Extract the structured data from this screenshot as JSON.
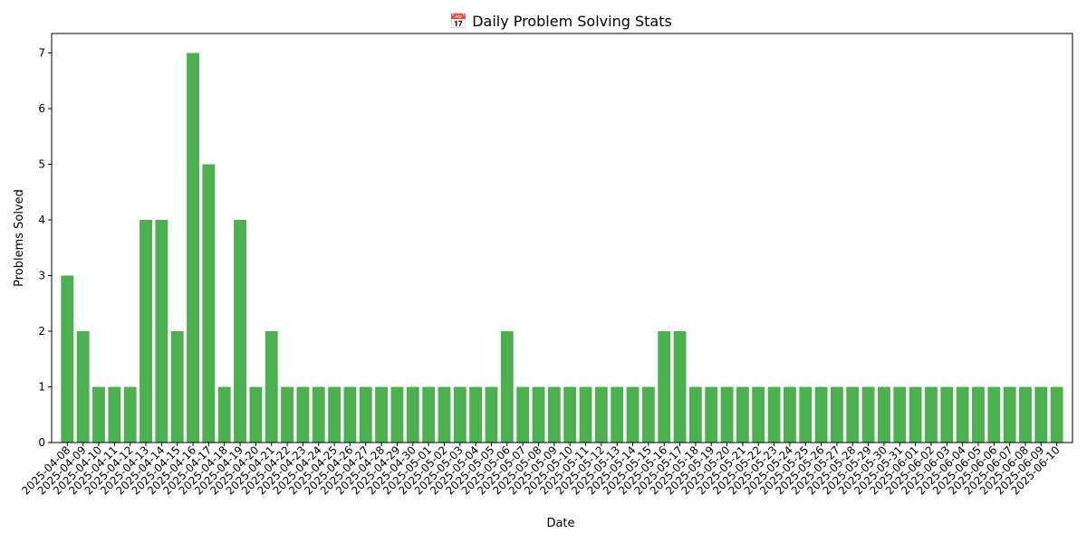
{
  "chart_data": {
    "type": "bar",
    "title": "📅 Daily Problem Solving Stats",
    "xlabel": "Date",
    "ylabel": "Problems Solved",
    "ylim": [
      0,
      7.35
    ],
    "yticks": [
      0,
      1,
      2,
      3,
      4,
      5,
      6,
      7
    ],
    "bar_color": "#4caf50",
    "grid": false,
    "categories": [
      "2025-04-08",
      "2025-04-09",
      "2025-04-10",
      "2025-04-11",
      "2025-04-12",
      "2025-04-13",
      "2025-04-14",
      "2025-04-15",
      "2025-04-16",
      "2025-04-17",
      "2025-04-18",
      "2025-04-19",
      "2025-04-20",
      "2025-04-21",
      "2025-04-22",
      "2025-04-23",
      "2025-04-24",
      "2025-04-25",
      "2025-04-26",
      "2025-04-27",
      "2025-04-28",
      "2025-04-29",
      "2025-04-30",
      "2025-05-01",
      "2025-05-02",
      "2025-05-03",
      "2025-05-04",
      "2025-05-05",
      "2025-05-06",
      "2025-05-07",
      "2025-05-08",
      "2025-05-09",
      "2025-05-10",
      "2025-05-11",
      "2025-05-12",
      "2025-05-13",
      "2025-05-14",
      "2025-05-15",
      "2025-05-16",
      "2025-05-17",
      "2025-05-18",
      "2025-05-19",
      "2025-05-20",
      "2025-05-21",
      "2025-05-22",
      "2025-05-23",
      "2025-05-24",
      "2025-05-25",
      "2025-05-26",
      "2025-05-27",
      "2025-05-28",
      "2025-05-29",
      "2025-05-30",
      "2025-05-31",
      "2025-06-01",
      "2025-06-02",
      "2025-06-03",
      "2025-06-04",
      "2025-06-05",
      "2025-06-06",
      "2025-06-07",
      "2025-06-08",
      "2025-06-09",
      "2025-06-10"
    ],
    "values": [
      3,
      2,
      1,
      1,
      1,
      4,
      4,
      2,
      7,
      5,
      1,
      4,
      1,
      2,
      1,
      1,
      1,
      1,
      1,
      1,
      1,
      1,
      1,
      1,
      1,
      1,
      1,
      1,
      2,
      1,
      1,
      1,
      1,
      1,
      1,
      1,
      1,
      1,
      2,
      2,
      1,
      1,
      1,
      1,
      1,
      1,
      1,
      1,
      1,
      1,
      1,
      1,
      1,
      1,
      1,
      1,
      1,
      1,
      1,
      1,
      1,
      1,
      1,
      1
    ]
  }
}
